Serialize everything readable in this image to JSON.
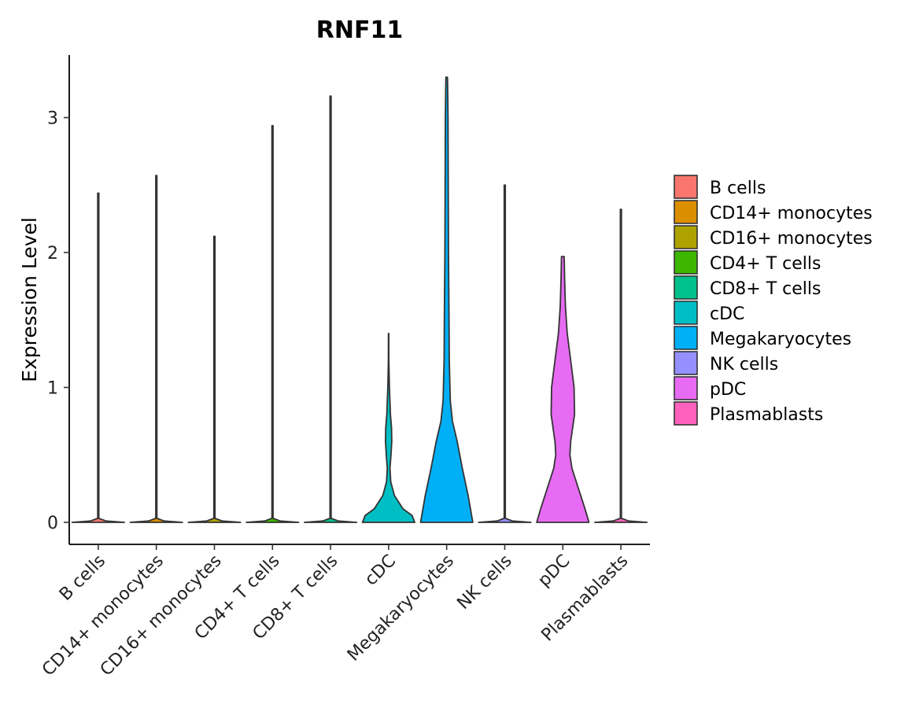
{
  "chart_data": {
    "type": "violin",
    "title": "RNF11",
    "xlabel": "",
    "ylabel": "Expression Level",
    "ylim": [
      -0.165,
      3.48
    ],
    "yticks": [
      0,
      1,
      2,
      3
    ],
    "grid": false,
    "legend_position": "right",
    "categories": [
      "B cells",
      "CD14+ monocytes",
      "CD16+ monocytes",
      "CD4+ T cells",
      "CD8+ T cells",
      "cDC",
      "Megakaryocytes",
      "NK cells",
      "pDC",
      "Plasmablasts"
    ],
    "colors": [
      "#F8766D",
      "#DB8E00",
      "#AEA200",
      "#3DB600",
      "#00C08B",
      "#00BFC4",
      "#00B0F6",
      "#9590FF",
      "#E76BF3",
      "#FF62BC"
    ],
    "max_values": [
      2.44,
      2.57,
      2.12,
      2.94,
      3.16,
      1.4,
      3.3,
      2.5,
      1.97,
      2.32
    ],
    "violins": [
      {
        "name": "B cells",
        "profile": [
          [
            0,
            1.0
          ],
          [
            0.01,
            0.3
          ],
          [
            0.03,
            0.02
          ],
          [
            2.44,
            0.02
          ]
        ]
      },
      {
        "name": "CD14+ monocytes",
        "profile": [
          [
            0,
            1.0
          ],
          [
            0.01,
            0.3
          ],
          [
            0.03,
            0.02
          ],
          [
            2.57,
            0.02
          ]
        ]
      },
      {
        "name": "CD16+ monocytes",
        "profile": [
          [
            0,
            1.0
          ],
          [
            0.01,
            0.3
          ],
          [
            0.03,
            0.02
          ],
          [
            2.12,
            0.02
          ]
        ]
      },
      {
        "name": "CD4+ T cells",
        "profile": [
          [
            0,
            1.0
          ],
          [
            0.01,
            0.3
          ],
          [
            0.03,
            0.02
          ],
          [
            2.94,
            0.02
          ]
        ]
      },
      {
        "name": "CD8+ T cells",
        "profile": [
          [
            0,
            1.0
          ],
          [
            0.01,
            0.3
          ],
          [
            0.03,
            0.02
          ],
          [
            3.16,
            0.02
          ]
        ]
      },
      {
        "name": "cDC",
        "profile": [
          [
            0,
            1.0
          ],
          [
            0.05,
            0.9
          ],
          [
            0.1,
            0.55
          ],
          [
            0.2,
            0.22
          ],
          [
            0.3,
            0.08
          ],
          [
            0.4,
            0.05
          ],
          [
            0.5,
            0.09
          ],
          [
            0.6,
            0.12
          ],
          [
            0.7,
            0.11
          ],
          [
            0.8,
            0.07
          ],
          [
            0.9,
            0.05
          ],
          [
            1.0,
            0.03
          ],
          [
            1.2,
            0.01
          ],
          [
            1.4,
            0.005
          ]
        ]
      },
      {
        "name": "Megakaryocytes",
        "profile": [
          [
            0,
            1.0
          ],
          [
            0.2,
            0.82
          ],
          [
            0.4,
            0.6
          ],
          [
            0.6,
            0.4
          ],
          [
            0.75,
            0.22
          ],
          [
            0.9,
            0.14
          ],
          [
            1.2,
            0.1
          ],
          [
            1.5,
            0.09
          ],
          [
            2.0,
            0.07
          ],
          [
            2.5,
            0.06
          ],
          [
            3.0,
            0.05
          ],
          [
            3.2,
            0.04
          ],
          [
            3.3,
            0.03
          ]
        ]
      },
      {
        "name": "NK cells",
        "profile": [
          [
            0,
            1.0
          ],
          [
            0.01,
            0.3
          ],
          [
            0.03,
            0.02
          ],
          [
            2.5,
            0.02
          ]
        ]
      },
      {
        "name": "pDC",
        "profile": [
          [
            0,
            1.0
          ],
          [
            0.1,
            0.85
          ],
          [
            0.25,
            0.6
          ],
          [
            0.4,
            0.35
          ],
          [
            0.5,
            0.27
          ],
          [
            0.6,
            0.3
          ],
          [
            0.8,
            0.45
          ],
          [
            1.0,
            0.43
          ],
          [
            1.2,
            0.3
          ],
          [
            1.4,
            0.17
          ],
          [
            1.6,
            0.1
          ],
          [
            1.8,
            0.07
          ],
          [
            1.97,
            0.05
          ]
        ]
      },
      {
        "name": "Plasmablasts",
        "profile": [
          [
            0,
            1.0
          ],
          [
            0.01,
            0.3
          ],
          [
            0.03,
            0.02
          ],
          [
            2.32,
            0.02
          ]
        ]
      }
    ]
  }
}
